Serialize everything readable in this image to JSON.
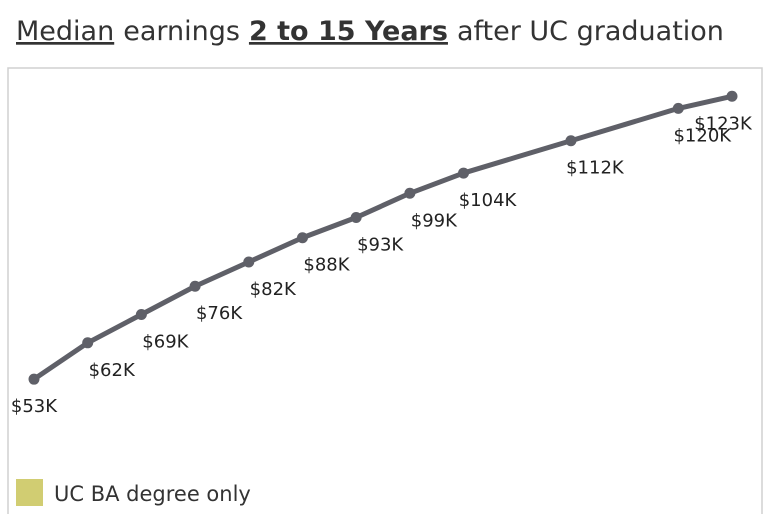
{
  "chart_data": {
    "type": "line",
    "title": [
      "Median",
      "earnings",
      "2 to 15 Years",
      "after UC graduation"
    ],
    "series": [
      {
        "name": "UC BA degree only",
        "color": "#5f6068",
        "legend_color": "#d1cd72",
        "values": [
          53,
          62,
          69,
          76,
          82,
          88,
          93,
          99,
          104,
          108,
          112,
          116,
          120,
          123
        ],
        "value_labels": [
          "$53K",
          "$62K",
          "$69K",
          "$76K",
          "$82K",
          "$88K",
          "$93K",
          "$99K",
          "$104K",
          null,
          "$112K",
          null,
          "$120K",
          "$123K"
        ]
      }
    ],
    "ylim": [
      33,
      130
    ]
  }
}
